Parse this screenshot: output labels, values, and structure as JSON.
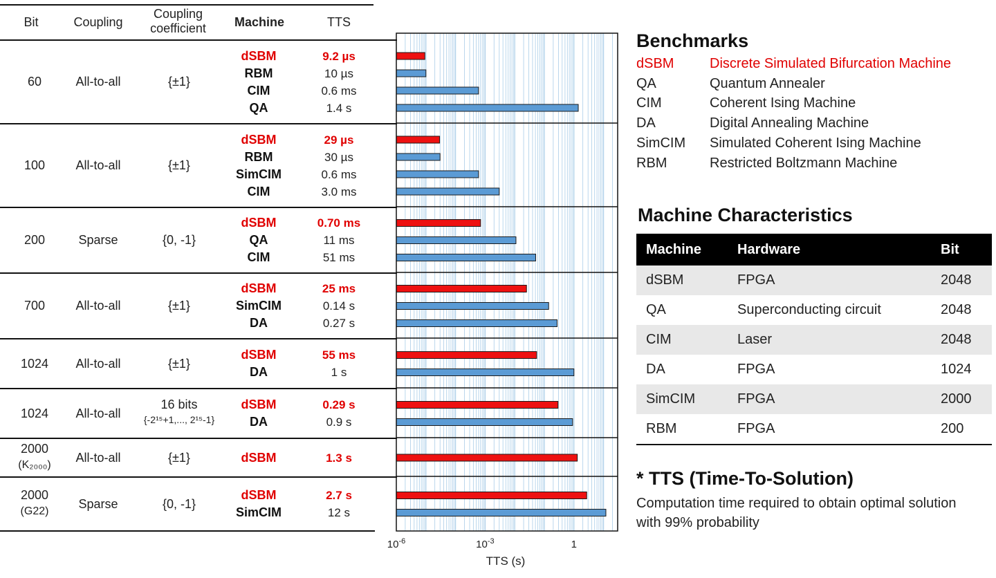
{
  "table": {
    "headers": {
      "bit": "Bit",
      "coupling": "Coupling",
      "coupling_coeff_line1": "Coupling",
      "coupling_coeff_line2": "coefficient",
      "machine": "Machine",
      "tts": "TTS"
    },
    "rows": [
      {
        "bit": "60",
        "bit_sub": "",
        "coupling": "All-to-all",
        "coeff": "{±1}",
        "coeff2": "",
        "entries": [
          {
            "machine": "dSBM",
            "tts": "9.2 µs",
            "highlight": true
          },
          {
            "machine": "RBM",
            "tts": "10 µs",
            "highlight": false
          },
          {
            "machine": "CIM",
            "tts": "0.6 ms",
            "highlight": false
          },
          {
            "machine": "QA",
            "tts": "1.4 s",
            "highlight": false
          }
        ]
      },
      {
        "bit": "100",
        "bit_sub": "",
        "coupling": "All-to-all",
        "coeff": "{±1}",
        "coeff2": "",
        "entries": [
          {
            "machine": "dSBM",
            "tts": "29 µs",
            "highlight": true
          },
          {
            "machine": "RBM",
            "tts": "30 µs",
            "highlight": false
          },
          {
            "machine": "SimCIM",
            "tts": "0.6 ms",
            "highlight": false
          },
          {
            "machine": "CIM",
            "tts": "3.0 ms",
            "highlight": false
          }
        ]
      },
      {
        "bit": "200",
        "bit_sub": "",
        "coupling": "Sparse",
        "coeff": "{0, -1}",
        "coeff2": "",
        "entries": [
          {
            "machine": "dSBM",
            "tts": "0.70 ms",
            "highlight": true
          },
          {
            "machine": "QA",
            "tts": "11 ms",
            "highlight": false
          },
          {
            "machine": "CIM",
            "tts": "51 ms",
            "highlight": false
          }
        ]
      },
      {
        "bit": "700",
        "bit_sub": "",
        "coupling": "All-to-all",
        "coeff": "{±1}",
        "coeff2": "",
        "entries": [
          {
            "machine": "dSBM",
            "tts": "25 ms",
            "highlight": true
          },
          {
            "machine": "SimCIM",
            "tts": "0.14 s",
            "highlight": false
          },
          {
            "machine": "DA",
            "tts": "0.27 s",
            "highlight": false
          }
        ]
      },
      {
        "bit": "1024",
        "bit_sub": "",
        "coupling": "All-to-all",
        "coeff": "{±1}",
        "coeff2": "",
        "entries": [
          {
            "machine": "dSBM",
            "tts": "55 ms",
            "highlight": true
          },
          {
            "machine": "DA",
            "tts": "1 s",
            "highlight": false
          }
        ]
      },
      {
        "bit": "1024",
        "bit_sub": "",
        "coupling": "All-to-all",
        "coeff": "16 bits",
        "coeff2": "{-2¹⁵+1,..., 2¹⁵-1}",
        "entries": [
          {
            "machine": "dSBM",
            "tts": "0.29 s",
            "highlight": true
          },
          {
            "machine": "DA",
            "tts": "0.9 s",
            "highlight": false
          }
        ]
      },
      {
        "bit": "2000",
        "bit_sub": "(K₂₀₀₀)",
        "coupling": "All-to-all",
        "coeff": "{±1}",
        "coeff2": "",
        "entries": [
          {
            "machine": "dSBM",
            "tts": "1.3 s",
            "highlight": true
          }
        ]
      },
      {
        "bit": "2000",
        "bit_sub": "(G22)",
        "coupling": "Sparse",
        "coeff": "{0, -1}",
        "coeff2": "",
        "entries": [
          {
            "machine": "dSBM",
            "tts": "2.7 s",
            "highlight": true
          },
          {
            "machine": "SimCIM",
            "tts": "12 s",
            "highlight": false
          }
        ]
      }
    ]
  },
  "chart_data": {
    "type": "bar",
    "orientation": "horizontal",
    "xscale": "log",
    "xlim": [
      1e-06,
      30
    ],
    "xlabel": "TTS (s)",
    "xticks": [
      {
        "value": 1e-06,
        "label": "10",
        "exp": "-6"
      },
      {
        "value": 0.001,
        "label": "10",
        "exp": "-3"
      },
      {
        "value": 1,
        "label": "1",
        "exp": ""
      }
    ],
    "grid": true,
    "series": [
      {
        "name": "dSBM",
        "color": "#ee1111"
      },
      {
        "name": "other",
        "color": "#5b9bd5"
      }
    ],
    "bars": [
      {
        "group": 0,
        "machine": "dSBM",
        "value": 9.2e-06
      },
      {
        "group": 0,
        "machine": "RBM",
        "value": 1e-05
      },
      {
        "group": 0,
        "machine": "CIM",
        "value": 0.0006
      },
      {
        "group": 0,
        "machine": "QA",
        "value": 1.4
      },
      {
        "group": 1,
        "machine": "dSBM",
        "value": 2.9e-05
      },
      {
        "group": 1,
        "machine": "RBM",
        "value": 3e-05
      },
      {
        "group": 1,
        "machine": "SimCIM",
        "value": 0.0006
      },
      {
        "group": 1,
        "machine": "CIM",
        "value": 0.003
      },
      {
        "group": 2,
        "machine": "dSBM",
        "value": 0.0007
      },
      {
        "group": 2,
        "machine": "QA",
        "value": 0.011
      },
      {
        "group": 2,
        "machine": "CIM",
        "value": 0.051
      },
      {
        "group": 3,
        "machine": "dSBM",
        "value": 0.025
      },
      {
        "group": 3,
        "machine": "SimCIM",
        "value": 0.14
      },
      {
        "group": 3,
        "machine": "DA",
        "value": 0.27
      },
      {
        "group": 4,
        "machine": "dSBM",
        "value": 0.055
      },
      {
        "group": 4,
        "machine": "DA",
        "value": 1.0
      },
      {
        "group": 5,
        "machine": "dSBM",
        "value": 0.29
      },
      {
        "group": 5,
        "machine": "DA",
        "value": 0.9
      },
      {
        "group": 6,
        "machine": "dSBM",
        "value": 1.3
      },
      {
        "group": 7,
        "machine": "dSBM",
        "value": 2.7
      },
      {
        "group": 7,
        "machine": "SimCIM",
        "value": 12
      }
    ]
  },
  "benchmarks": {
    "title": "Benchmarks",
    "items": [
      {
        "abbr": "dSBM",
        "full": "Discrete Simulated Bifurcation Machine",
        "highlight": true
      },
      {
        "abbr": "QA",
        "full": "Quantum Annealer",
        "highlight": false
      },
      {
        "abbr": "CIM",
        "full": "Coherent Ising Machine",
        "highlight": false
      },
      {
        "abbr": "DA",
        "full": "Digital Annealing Machine",
        "highlight": false
      },
      {
        "abbr": "SimCIM",
        "full": "Simulated Coherent Ising Machine",
        "highlight": false
      },
      {
        "abbr": "RBM",
        "full": "Restricted Boltzmann Machine",
        "highlight": false
      }
    ]
  },
  "machine_characteristics": {
    "title": "Machine Characteristics",
    "headers": [
      "Machine",
      "Hardware",
      "Bit"
    ],
    "rows": [
      [
        "dSBM",
        "FPGA",
        "2048"
      ],
      [
        "QA",
        "Superconducting circuit",
        "2048"
      ],
      [
        "CIM",
        "Laser",
        "2048"
      ],
      [
        "DA",
        "FPGA",
        "1024"
      ],
      [
        "SimCIM",
        "FPGA",
        "2000"
      ],
      [
        "RBM",
        "FPGA",
        "200"
      ]
    ]
  },
  "tts_note": {
    "title": "* TTS (Time-To-Solution)",
    "text": "Computation time required to obtain optimal solution with 99% probability"
  },
  "colors": {
    "highlight": "#e00000",
    "bar_other": "#5b9bd5",
    "bar_dsbm": "#ee1111",
    "grid": "#a9cde8"
  }
}
